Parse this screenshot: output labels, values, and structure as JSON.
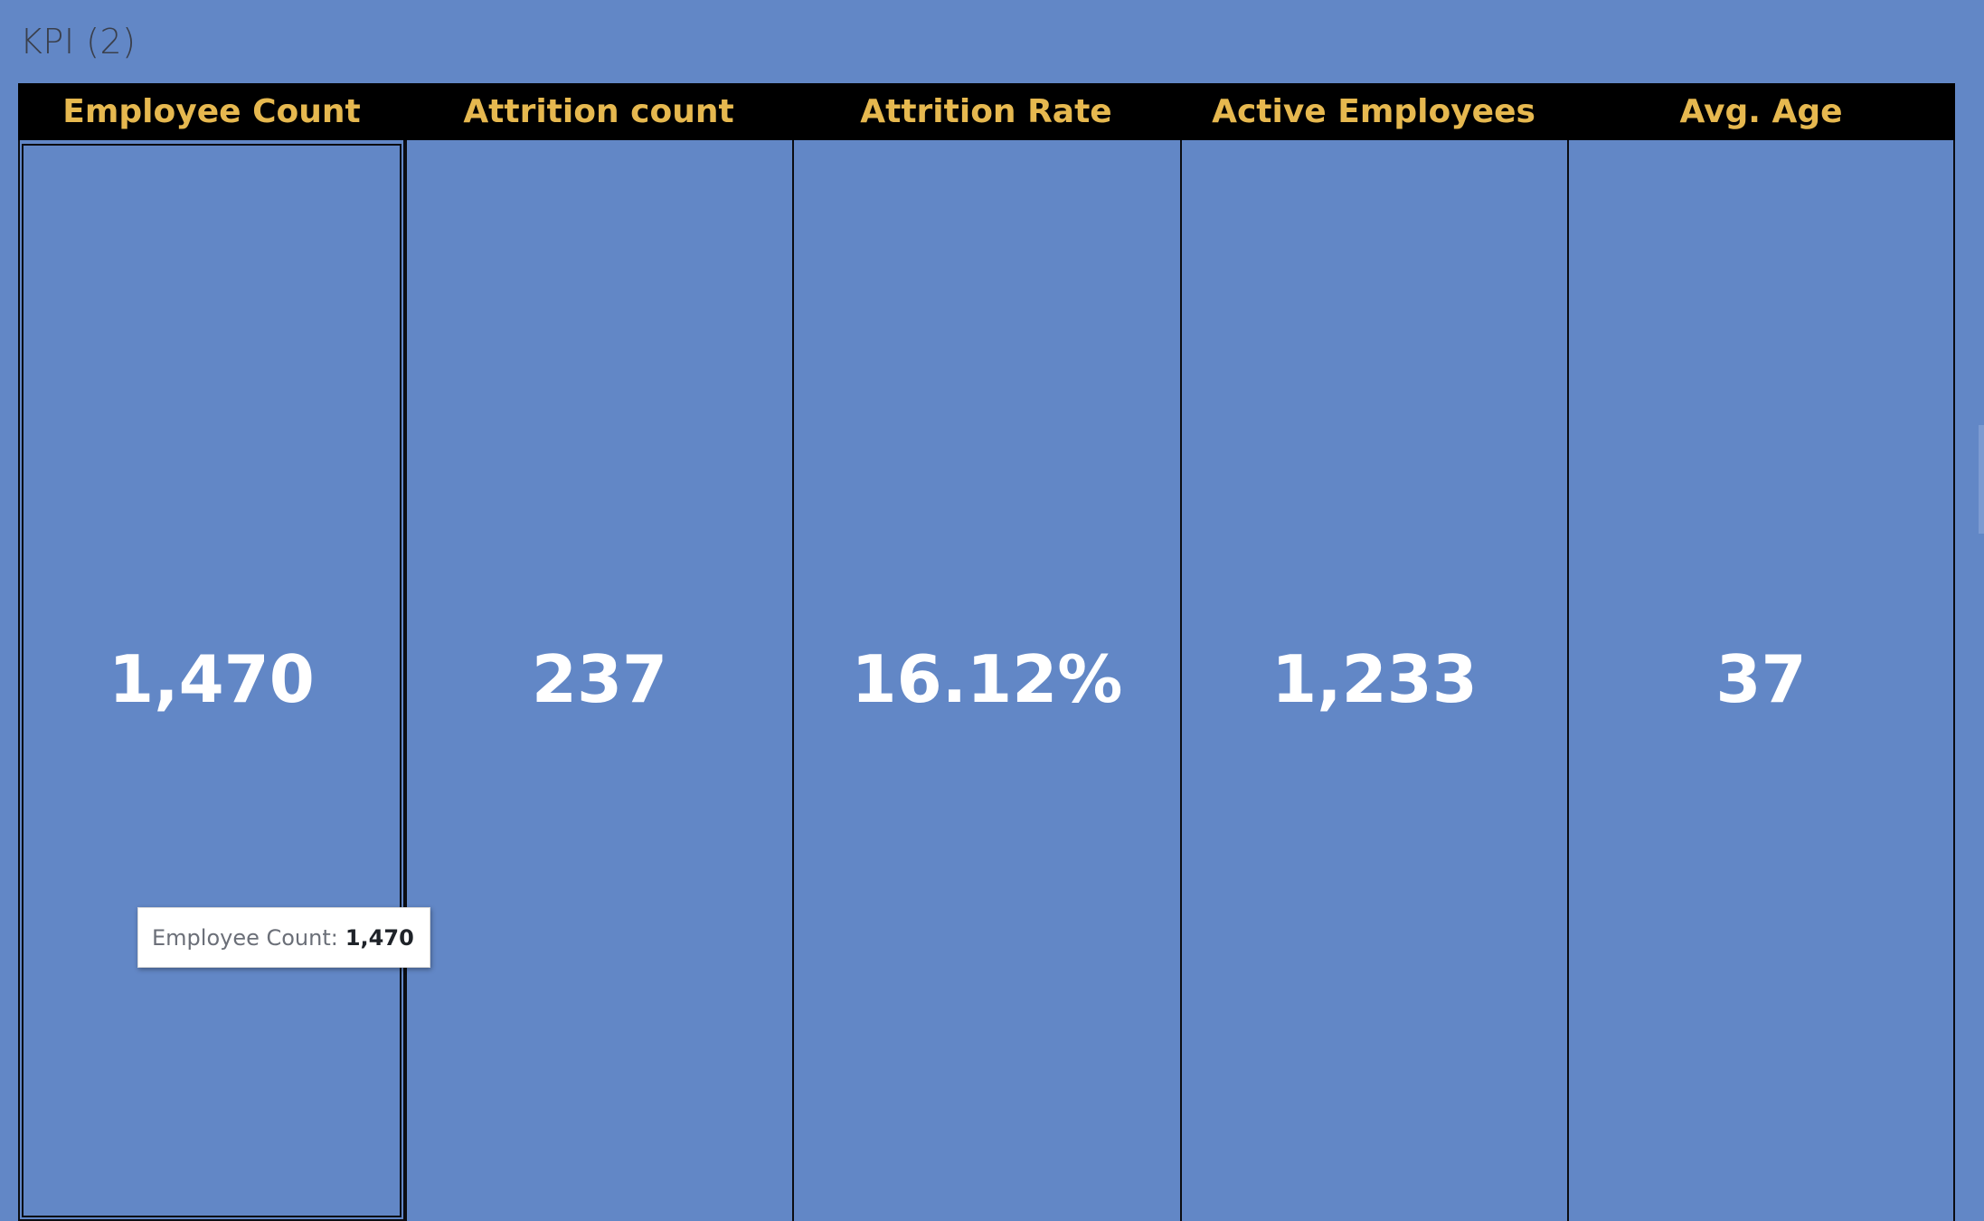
{
  "sheet": {
    "title": "KPI (2)"
  },
  "colors": {
    "background": "#6287c6",
    "header_background": "#000000",
    "header_text": "#e6b84f",
    "value_text": "#ffffff"
  },
  "chart_data": {
    "type": "table",
    "columns": [
      "Employee Count",
      "Attrition count",
      "Attrition Rate",
      "Active Employees",
      "Avg. Age"
    ],
    "values": [
      "1,470",
      "237",
      "16.12%",
      "1,233",
      "37"
    ],
    "selected_column": "Employee Count"
  },
  "tooltip": {
    "label": "Employee Count:",
    "value": "1,470"
  }
}
